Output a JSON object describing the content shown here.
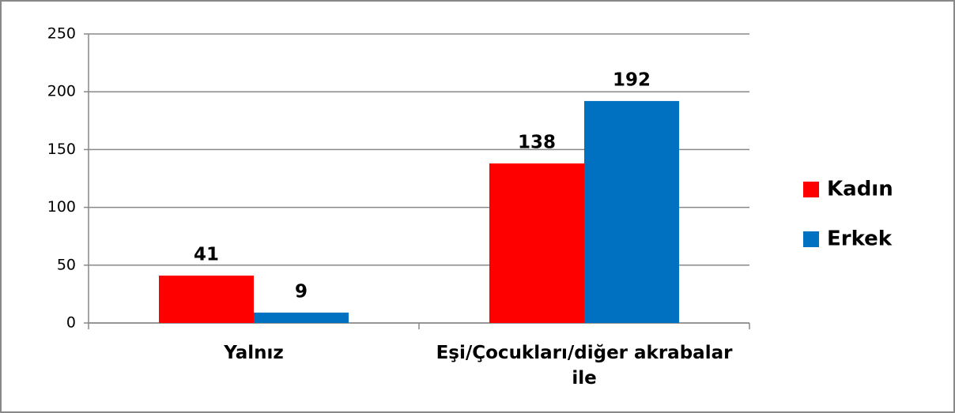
{
  "chart_data": {
    "type": "bar",
    "categories": [
      "Yalnız",
      "Eşi/Çocukları/diğer akrabalar ile"
    ],
    "series": [
      {
        "name": "Kadın",
        "color": "#ff0000",
        "values": [
          41,
          138
        ]
      },
      {
        "name": "Erkek",
        "color": "#0070c0",
        "values": [
          9,
          192
        ]
      }
    ],
    "ylim": [
      0,
      250
    ],
    "yticks": [
      0,
      50,
      100,
      150,
      200,
      250
    ],
    "grid": true,
    "legend": "right"
  }
}
